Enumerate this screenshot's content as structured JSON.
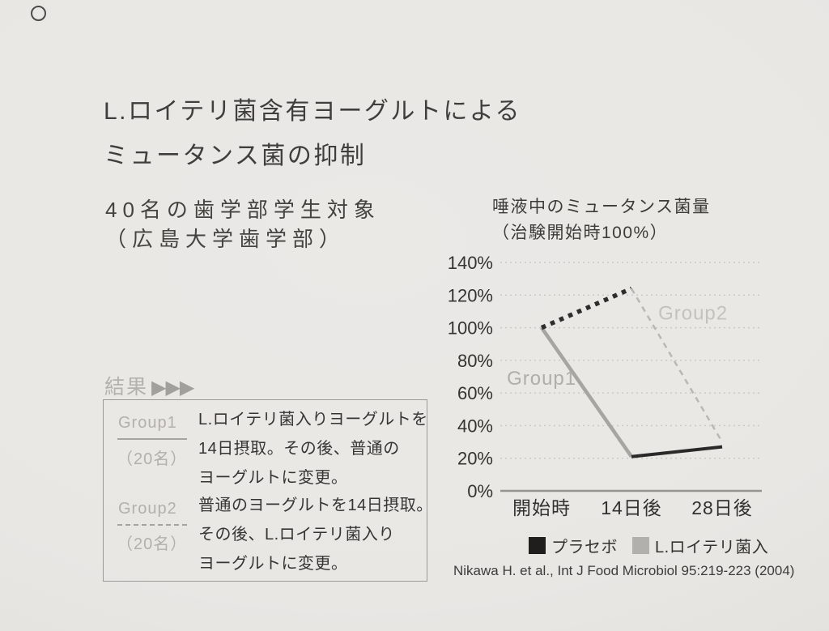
{
  "page": {
    "background_color": "#e9e7e4",
    "hole_marker": "ring-icon"
  },
  "title": {
    "line1": "L.ロイテリ菌含有ヨーグルトによる",
    "line2": "ミュータンス菌の抑制"
  },
  "study": {
    "line1": "40名の歯学部学生対象",
    "line2": "（広島大学歯学部）"
  },
  "chart": {
    "title_line1": "唾液中のミュータンス菌量",
    "title_line2": "（治験開始時100%）"
  },
  "chart_data": {
    "type": "line",
    "title": "唾液中のミュータンス菌量（治験開始時100%）",
    "categories": [
      "開始時",
      "14日後",
      "28日後"
    ],
    "series": [
      {
        "name": "Group1",
        "values": [
          100,
          21,
          27
        ]
      },
      {
        "name": "Group2",
        "values": [
          100,
          124,
          30
        ]
      }
    ],
    "segments": [
      {
        "series": "Group1",
        "phase": "1",
        "treatment": "L.ロイテリ菌入",
        "points": [
          [
            0,
            100
          ],
          [
            1,
            21
          ]
        ],
        "color": "#a7a5a2",
        "width": 4.5,
        "dash": "none"
      },
      {
        "series": "Group1",
        "phase": "2",
        "treatment": "プラセボ",
        "points": [
          [
            1,
            21
          ],
          [
            2,
            27
          ]
        ],
        "color": "#2a2927",
        "width": 4,
        "dash": "none"
      },
      {
        "series": "Group2",
        "phase": "1",
        "treatment": "プラセボ",
        "points": [
          [
            0,
            100
          ],
          [
            1,
            124
          ]
        ],
        "color": "#2e2d2b",
        "width": 5.5,
        "dash": "5.5 6.5"
      },
      {
        "series": "Group2",
        "phase": "2",
        "treatment": "L.ロイテリ菌入",
        "points": [
          [
            1,
            124
          ],
          [
            2,
            30
          ]
        ],
        "color": "#bab8b5",
        "width": 2.5,
        "dash": "7 6"
      }
    ],
    "annotations": [
      {
        "text": "Group1",
        "color": "#b0aeaa",
        "fx": 0.025,
        "value": 65
      },
      {
        "text": "Group2",
        "color": "#c4c2be",
        "fx": 0.604,
        "value": 105
      }
    ],
    "ylim": [
      0,
      140
    ],
    "ytick_step": 20,
    "yticks": [
      "0%",
      "20%",
      "40%",
      "60%",
      "80%",
      "100%",
      "120%",
      "140%"
    ],
    "grid": "horizontal-dotted",
    "grid_color": "#c9c7c3",
    "axis_color": "#96948f",
    "legend_position": "bottom",
    "legend": [
      {
        "label": "プラセボ",
        "color": "#1f1e1c"
      },
      {
        "label": "L.ロイテリ菌入",
        "color": "#b2b0ad"
      }
    ]
  },
  "results": {
    "heading": "結果",
    "heading_arrows": "▶▶▶",
    "groups": [
      {
        "name": "Group1",
        "size": "（20名）",
        "underline": "solid",
        "description": [
          "L.ロイテリ菌入りヨーグルトを",
          "14日摂取。その後、普通の",
          "ヨーグルトに変更。"
        ]
      },
      {
        "name": "Group2",
        "size": "（20名）",
        "underline": "dashed",
        "description": [
          "普通のヨーグルトを14日摂取。",
          "その後、L.ロイテリ菌入り",
          "ヨーグルトに変更。"
        ]
      }
    ]
  },
  "citation": "Nikawa H. et al., Int J Food Microbiol 95:219-223 (2004)"
}
